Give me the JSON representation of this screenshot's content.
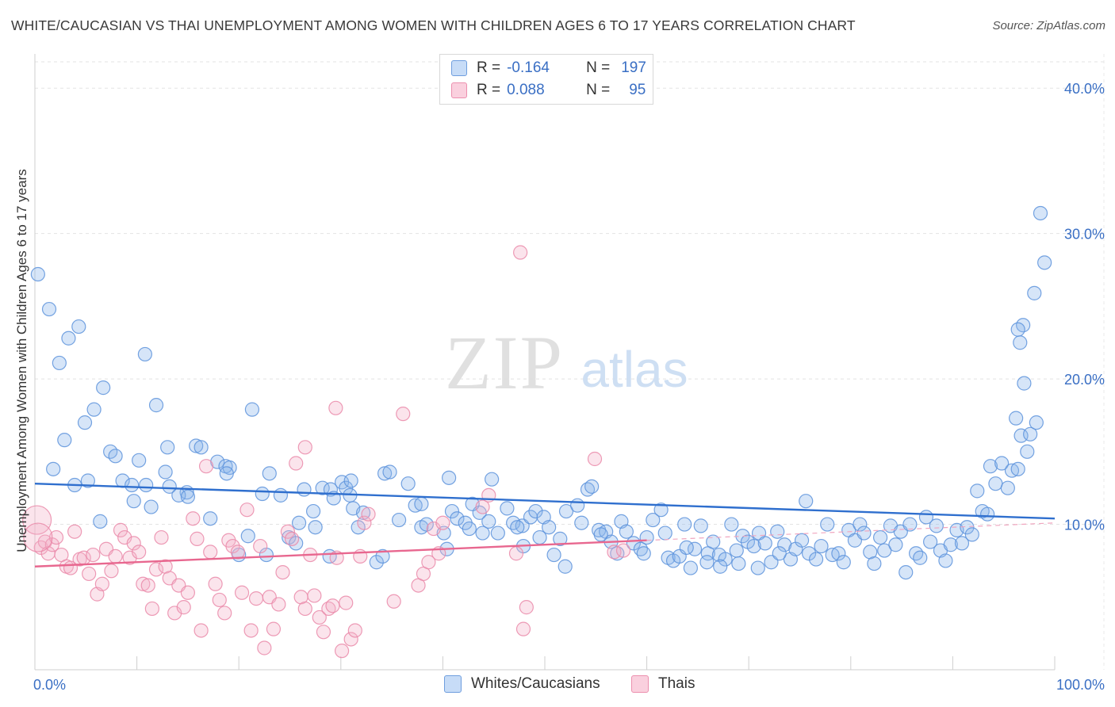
{
  "title": "WHITE/CAUCASIAN VS THAI UNEMPLOYMENT AMONG WOMEN WITH CHILDREN AGES 6 TO 17 YEARS CORRELATION CHART",
  "source": "Source: ZipAtlas.com",
  "watermark": {
    "zip": "ZIP",
    "atlas": "atlas"
  },
  "colors": {
    "blue": "#8ab4ea",
    "blue_line": "#2f6fce",
    "pink": "#f0a6bf",
    "pink_line": "#e8678f",
    "axis_text": "#3a6fc4"
  },
  "legend_top": [
    {
      "r_label": "R =",
      "r_value": "-0.164",
      "n_label": "N =",
      "n_value": "197"
    },
    {
      "r_label": "R =",
      "r_value": "0.088",
      "n_label": "N =",
      "n_value": "95"
    }
  ],
  "chart_data": {
    "type": "scatter",
    "title": "WHITE/CAUCASIAN VS THAI UNEMPLOYMENT AMONG WOMEN WITH CHILDREN AGES 6 TO 17 YEARS CORRELATION CHART",
    "xlabel": "",
    "ylabel": "Unemployment Among Women with Children Ages 6 to 17 years",
    "xlim": [
      0,
      100
    ],
    "ylim": [
      0,
      42
    ],
    "x_tick_labels": [
      "0.0%",
      "100.0%"
    ],
    "y_tick_labels": [
      "10.0%",
      "20.0%",
      "30.0%",
      "40.0%"
    ],
    "y_ticks": [
      10,
      20,
      30,
      40
    ],
    "grid": true,
    "legend_position": "top-center and bottom",
    "series": [
      {
        "name": "Whites/Caucasians",
        "trend": {
          "x": [
            0,
            100
          ],
          "y": [
            12.8,
            10.4
          ]
        },
        "points": [
          [
            0.3,
            27.2
          ],
          [
            1.4,
            24.8
          ],
          [
            2.4,
            21.1
          ],
          [
            3.3,
            22.8
          ],
          [
            4.3,
            23.6
          ],
          [
            2.9,
            15.8
          ],
          [
            4.9,
            17
          ],
          [
            5.8,
            17.9
          ],
          [
            6.7,
            19.4
          ],
          [
            7.4,
            15.0
          ],
          [
            7.9,
            14.7
          ],
          [
            9.7,
            11.6
          ],
          [
            10.2,
            14.4
          ],
          [
            10.8,
            21.7
          ],
          [
            11.9,
            18.2
          ],
          [
            12.8,
            13.6
          ],
          [
            13.0,
            15.3
          ],
          [
            14.9,
            12.2
          ],
          [
            15.8,
            15.4
          ],
          [
            16.3,
            15.3
          ],
          [
            17.9,
            14.3
          ],
          [
            18.7,
            14.0
          ],
          [
            19.1,
            13.9
          ],
          [
            21.3,
            17.9
          ],
          [
            22.3,
            12.1
          ],
          [
            23.0,
            13.5
          ],
          [
            24.1,
            12.0
          ],
          [
            25.9,
            10.1
          ],
          [
            26.4,
            12.4
          ],
          [
            27.3,
            10.9
          ],
          [
            28.2,
            12.5
          ],
          [
            29.0,
            12.4
          ],
          [
            29.3,
            11.8
          ],
          [
            30.1,
            12.9
          ],
          [
            30.5,
            12.5
          ],
          [
            30.9,
            12.0
          ],
          [
            31.0,
            13.0
          ],
          [
            31.2,
            11.1
          ],
          [
            32.2,
            10.8
          ],
          [
            34.3,
            13.5
          ],
          [
            34.8,
            13.6
          ],
          [
            36.6,
            12.8
          ],
          [
            37.3,
            11.3
          ],
          [
            37.9,
            9.8
          ],
          [
            38.4,
            10.0
          ],
          [
            40.1,
            9.4
          ],
          [
            40.6,
            13.2
          ],
          [
            40.9,
            10.9
          ],
          [
            41.4,
            10.4
          ],
          [
            42.2,
            10.1
          ],
          [
            42.6,
            9.7
          ],
          [
            43.6,
            10.8
          ],
          [
            43.9,
            9.4
          ],
          [
            44.5,
            10.2
          ],
          [
            45.4,
            9.4
          ],
          [
            46.3,
            11.1
          ],
          [
            46.9,
            10.1
          ],
          [
            47.8,
            9.9
          ],
          [
            47.9,
            8.5
          ],
          [
            48.6,
            10.5
          ],
          [
            49.1,
            10.9
          ],
          [
            49.9,
            10.5
          ],
          [
            50.4,
            9.8
          ],
          [
            52.0,
            7.1
          ],
          [
            52.1,
            10.9
          ],
          [
            53.2,
            11.3
          ],
          [
            54.2,
            12.4
          ],
          [
            54.6,
            12.6
          ],
          [
            55.3,
            9.6
          ],
          [
            56.0,
            9.5
          ],
          [
            56.5,
            8.8
          ],
          [
            57.5,
            10.2
          ],
          [
            58.0,
            9.5
          ],
          [
            58.7,
            8.7
          ],
          [
            59.4,
            8.3
          ],
          [
            60.0,
            9.1
          ],
          [
            60.6,
            10.3
          ],
          [
            61.4,
            11.0
          ],
          [
            62.1,
            7.7
          ],
          [
            62.6,
            7.5
          ],
          [
            63.2,
            7.8
          ],
          [
            63.7,
            10.0
          ],
          [
            64.3,
            7.0
          ],
          [
            64.7,
            8.3
          ],
          [
            65.3,
            9.9
          ],
          [
            66.0,
            8.0
          ],
          [
            66.5,
            8.8
          ],
          [
            67.1,
            7.9
          ],
          [
            67.7,
            7.6
          ],
          [
            68.3,
            10.0
          ],
          [
            68.8,
            8.2
          ],
          [
            69.4,
            9.2
          ],
          [
            69.9,
            8.8
          ],
          [
            70.5,
            8.5
          ],
          [
            71.0,
            9.4
          ],
          [
            71.6,
            8.7
          ],
          [
            72.2,
            7.4
          ],
          [
            72.8,
            9.5
          ],
          [
            73.5,
            8.6
          ],
          [
            74.1,
            7.6
          ],
          [
            74.6,
            8.3
          ],
          [
            75.2,
            8.9
          ],
          [
            75.6,
            11.6
          ],
          [
            75.9,
            8.0
          ],
          [
            76.6,
            7.6
          ],
          [
            77.1,
            8.5
          ],
          [
            77.7,
            10.0
          ],
          [
            78.2,
            7.9
          ],
          [
            78.8,
            8.0
          ],
          [
            79.3,
            7.4
          ],
          [
            79.8,
            9.6
          ],
          [
            80.4,
            8.9
          ],
          [
            80.9,
            10.0
          ],
          [
            81.3,
            9.4
          ],
          [
            81.9,
            8.1
          ],
          [
            82.3,
            7.3
          ],
          [
            82.9,
            9.1
          ],
          [
            83.3,
            8.2
          ],
          [
            83.9,
            9.9
          ],
          [
            84.4,
            8.6
          ],
          [
            84.9,
            9.5
          ],
          [
            85.4,
            6.7
          ],
          [
            85.8,
            10.0
          ],
          [
            86.4,
            8.0
          ],
          [
            86.8,
            7.7
          ],
          [
            87.4,
            10.5
          ],
          [
            87.8,
            8.8
          ],
          [
            88.4,
            9.9
          ],
          [
            88.8,
            8.2
          ],
          [
            89.3,
            7.5
          ],
          [
            89.8,
            8.6
          ],
          [
            90.4,
            9.6
          ],
          [
            90.9,
            8.7
          ],
          [
            91.4,
            9.8
          ],
          [
            91.9,
            9.3
          ],
          [
            92.4,
            12.3
          ],
          [
            92.9,
            10.9
          ],
          [
            93.4,
            10.7
          ],
          [
            93.7,
            14.0
          ],
          [
            94.2,
            12.8
          ],
          [
            94.8,
            14.2
          ],
          [
            95.4,
            12.5
          ],
          [
            95.8,
            13.7
          ],
          [
            96.2,
            17.3
          ],
          [
            96.7,
            16.1
          ],
          [
            97.3,
            15.0
          ],
          [
            97.6,
            16.2
          ],
          [
            98.2,
            17.0
          ],
          [
            96.4,
            13.8
          ],
          [
            97.0,
            19.7
          ],
          [
            96.6,
            22.5
          ],
          [
            96.9,
            23.7
          ],
          [
            96.4,
            23.4
          ],
          [
            98.0,
            25.9
          ],
          [
            98.6,
            31.4
          ],
          [
            99.0,
            28.0
          ],
          [
            1.8,
            13.8
          ],
          [
            3.9,
            12.7
          ],
          [
            5.2,
            13.0
          ],
          [
            6.4,
            10.2
          ],
          [
            8.6,
            13.0
          ],
          [
            9.5,
            12.7
          ],
          [
            10.9,
            12.7
          ],
          [
            11.4,
            11.2
          ],
          [
            13.2,
            12.6
          ],
          [
            14.1,
            12.0
          ],
          [
            15.0,
            11.9
          ],
          [
            17.2,
            10.4
          ],
          [
            18.8,
            13.5
          ],
          [
            20.0,
            7.9
          ],
          [
            20.9,
            9.2
          ],
          [
            22.7,
            7.9
          ],
          [
            24.9,
            9.1
          ],
          [
            25.6,
            8.7
          ],
          [
            27.5,
            9.8
          ],
          [
            28.9,
            7.8
          ],
          [
            31.7,
            9.8
          ],
          [
            33.5,
            7.4
          ],
          [
            34.1,
            7.8
          ],
          [
            35.7,
            10.3
          ],
          [
            37.9,
            11.4
          ],
          [
            40.4,
            8.3
          ],
          [
            42.9,
            11.4
          ],
          [
            44.8,
            13.1
          ],
          [
            47.3,
            9.8
          ],
          [
            49.5,
            9.1
          ],
          [
            50.9,
            7.9
          ],
          [
            51.5,
            9.0
          ],
          [
            53.6,
            10.1
          ],
          [
            55.5,
            9.3
          ],
          [
            57.1,
            8.0
          ],
          [
            59.7,
            8.0
          ],
          [
            61.8,
            9.4
          ],
          [
            63.9,
            8.4
          ],
          [
            65.9,
            7.4
          ],
          [
            67.2,
            7.1
          ],
          [
            69.0,
            7.3
          ],
          [
            70.9,
            7.0
          ],
          [
            73.0,
            8.0
          ]
        ]
      },
      {
        "name": "Thais",
        "trend": {
          "x": [
            0,
            60
          ],
          "y": [
            7.1,
            8.9
          ]
        },
        "points": [
          [
            0.2,
            10.3
          ],
          [
            0.6,
            8.4
          ],
          [
            1.0,
            8.8
          ],
          [
            1.3,
            8.0
          ],
          [
            1.7,
            8.6
          ],
          [
            2.1,
            9.1
          ],
          [
            2.6,
            7.9
          ],
          [
            3.1,
            7.1
          ],
          [
            3.5,
            7.0
          ],
          [
            3.9,
            9.5
          ],
          [
            4.4,
            7.6
          ],
          [
            4.8,
            7.7
          ],
          [
            5.3,
            6.6
          ],
          [
            5.7,
            7.9
          ],
          [
            6.1,
            5.2
          ],
          [
            6.6,
            5.9
          ],
          [
            7.0,
            8.3
          ],
          [
            7.5,
            6.8
          ],
          [
            7.9,
            7.8
          ],
          [
            8.4,
            9.6
          ],
          [
            8.8,
            9.1
          ],
          [
            9.3,
            7.7
          ],
          [
            9.7,
            8.7
          ],
          [
            10.2,
            8.1
          ],
          [
            10.6,
            5.9
          ],
          [
            11.1,
            5.8
          ],
          [
            11.5,
            4.2
          ],
          [
            11.9,
            6.9
          ],
          [
            12.4,
            9.1
          ],
          [
            12.8,
            7.1
          ],
          [
            13.2,
            6.3
          ],
          [
            13.7,
            3.9
          ],
          [
            14.1,
            5.8
          ],
          [
            14.6,
            4.3
          ],
          [
            15.0,
            5.3
          ],
          [
            15.5,
            10.4
          ],
          [
            15.9,
            9.0
          ],
          [
            16.3,
            2.7
          ],
          [
            16.8,
            14.0
          ],
          [
            17.2,
            8.1
          ],
          [
            17.7,
            5.9
          ],
          [
            18.1,
            4.8
          ],
          [
            18.6,
            3.9
          ],
          [
            19.0,
            8.9
          ],
          [
            19.4,
            8.5
          ],
          [
            19.9,
            8.1
          ],
          [
            20.3,
            5.3
          ],
          [
            20.8,
            11.0
          ],
          [
            21.2,
            2.7
          ],
          [
            21.7,
            4.9
          ],
          [
            22.1,
            8.5
          ],
          [
            22.5,
            1.5
          ],
          [
            23.0,
            5.0
          ],
          [
            23.4,
            2.8
          ],
          [
            23.9,
            4.5
          ],
          [
            24.3,
            6.7
          ],
          [
            24.8,
            9.5
          ],
          [
            25.2,
            9.0
          ],
          [
            25.6,
            14.2
          ],
          [
            26.1,
            5.0
          ],
          [
            26.5,
            4.2
          ],
          [
            27.0,
            7.9
          ],
          [
            27.4,
            5.1
          ],
          [
            27.9,
            3.6
          ],
          [
            28.3,
            2.6
          ],
          [
            28.8,
            4.2
          ],
          [
            29.2,
            4.4
          ],
          [
            29.6,
            7.7
          ],
          [
            30.1,
            1.3
          ],
          [
            30.5,
            4.6
          ],
          [
            31.0,
            2.1
          ],
          [
            31.4,
            2.7
          ],
          [
            31.9,
            7.8
          ],
          [
            32.3,
            10.1
          ],
          [
            32.7,
            10.7
          ],
          [
            35.2,
            4.7
          ],
          [
            36.1,
            17.6
          ],
          [
            37.6,
            5.8
          ],
          [
            38.1,
            6.6
          ],
          [
            38.6,
            7.4
          ],
          [
            39.1,
            9.7
          ],
          [
            39.6,
            8.0
          ],
          [
            40.0,
            10.1
          ],
          [
            43.9,
            11.2
          ],
          [
            44.5,
            12.0
          ],
          [
            47.2,
            8.0
          ],
          [
            47.6,
            28.7
          ],
          [
            47.9,
            2.8
          ],
          [
            48.2,
            4.3
          ],
          [
            54.9,
            14.5
          ],
          [
            56.8,
            8.1
          ],
          [
            57.7,
            8.2
          ],
          [
            29.5,
            18.0
          ],
          [
            26.5,
            15.3
          ],
          [
            0.3,
            9.1
          ]
        ]
      }
    ]
  },
  "bottom_legend": [
    {
      "label": "Whites/Caucasians"
    },
    {
      "label": "Thais"
    }
  ]
}
